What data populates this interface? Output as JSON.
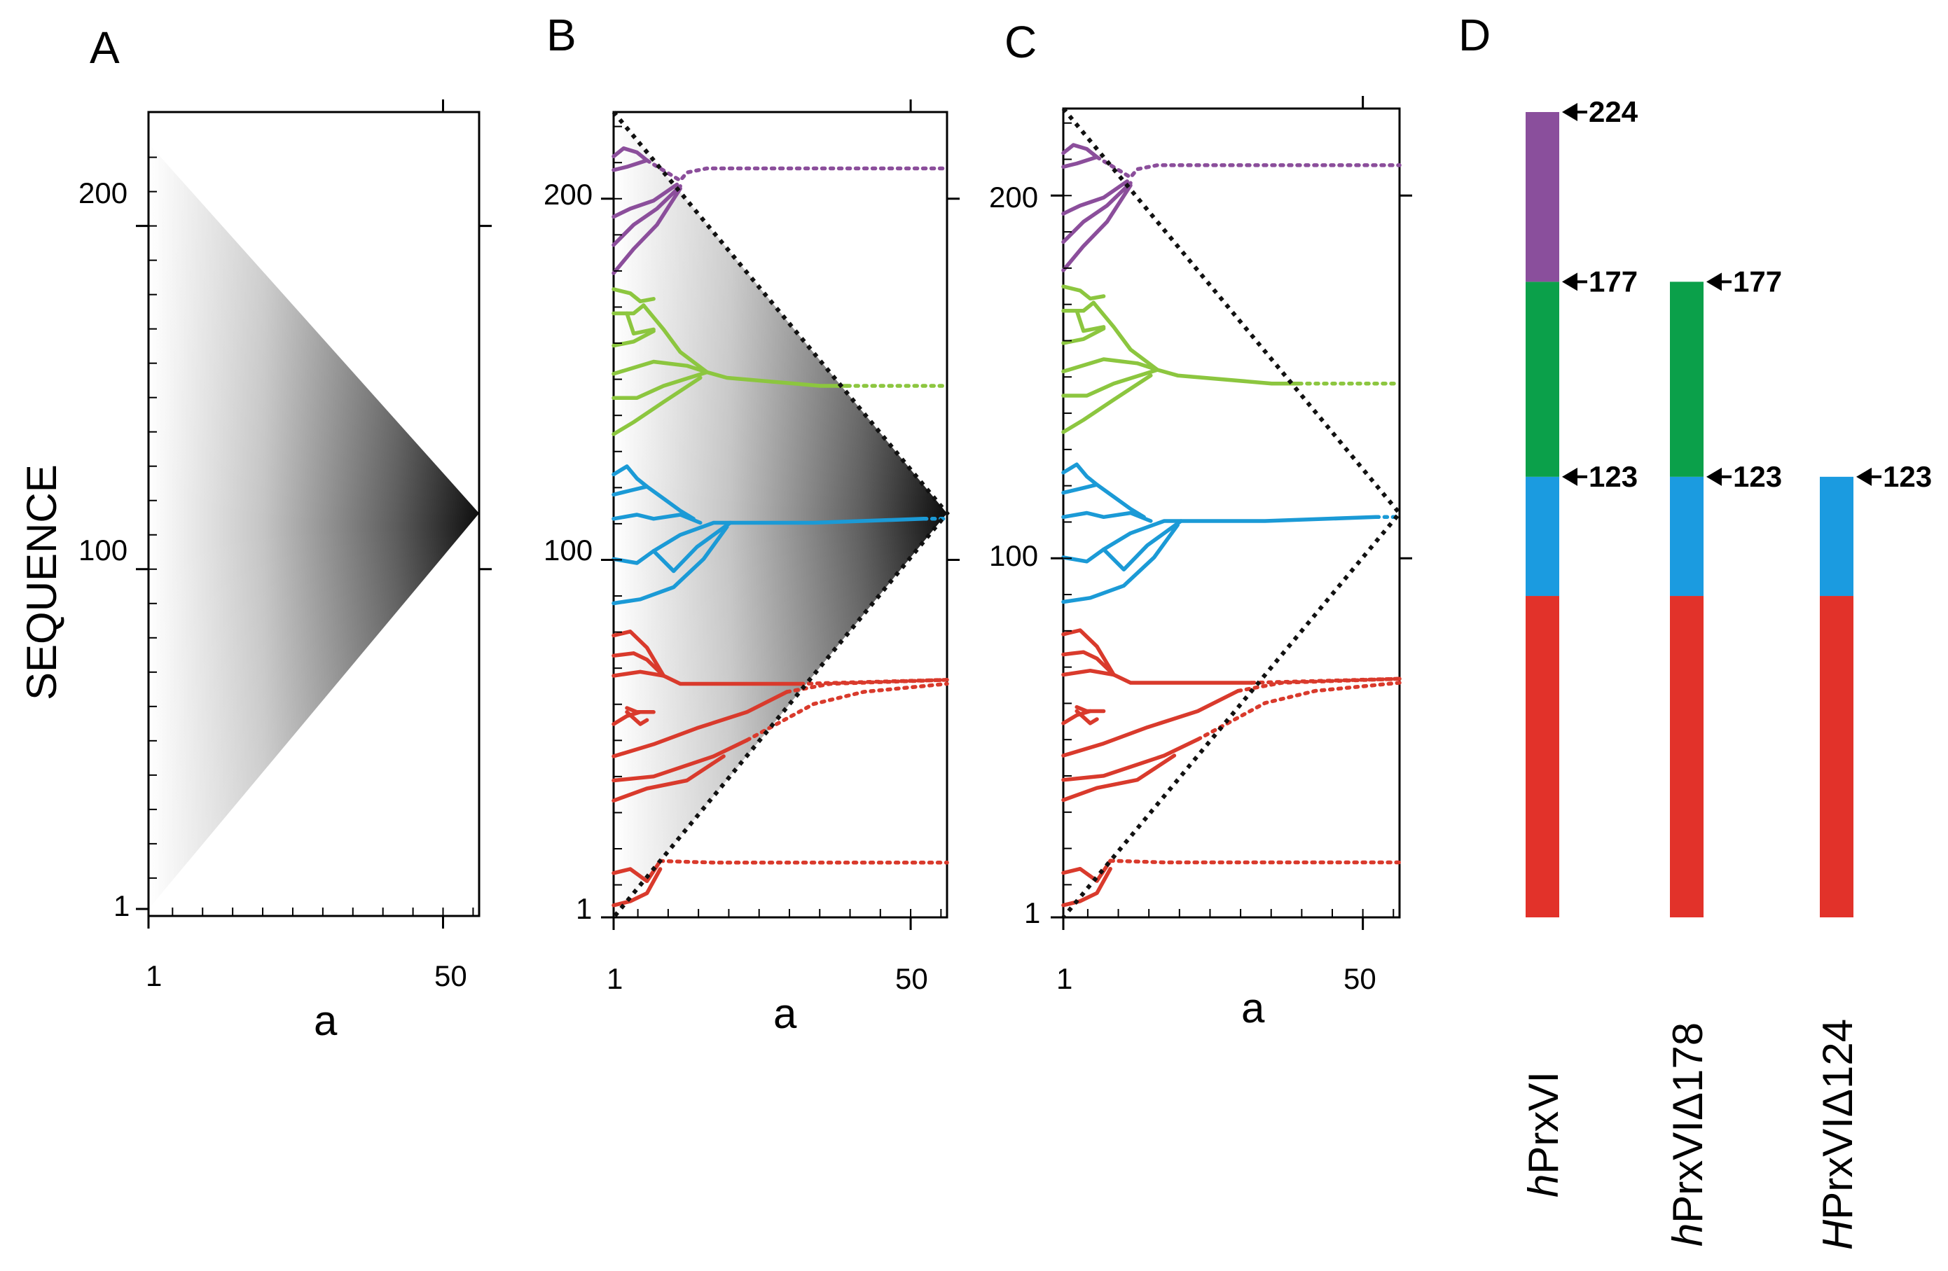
{
  "panels": [
    {
      "id": "A",
      "label": "A",
      "xlabel": "a",
      "y_ticks": [
        "1",
        "100",
        "200"
      ],
      "x_ticks": [
        "1",
        "50"
      ],
      "has_skeleton": false,
      "has_gray": true
    },
    {
      "id": "B",
      "label": "B",
      "xlabel": "a",
      "y_ticks": [
        "1",
        "100",
        "200"
      ],
      "x_ticks": [
        "1",
        "50"
      ],
      "has_skeleton": true,
      "has_gray": true
    },
    {
      "id": "C",
      "label": "C",
      "xlabel": "a",
      "y_ticks": [
        "1",
        "100",
        "200"
      ],
      "x_ticks": [
        "1",
        "50"
      ],
      "has_skeleton": true,
      "has_gray": false
    }
  ],
  "ylabel": "SEQUENCE",
  "axis": {
    "seq_min": 1,
    "seq_max": 224,
    "scale_min": 1,
    "scale_max": 56,
    "y_tick_values": [
      1,
      100,
      200
    ],
    "x_tick_values": [
      1,
      50
    ]
  },
  "domain_colors": {
    "purple": "#8b4e9b",
    "green": "#8cc63f",
    "blue": "#1b9ad6",
    "red": "#d93a2c"
  },
  "panel_d": {
    "label": "D",
    "segment_colors": {
      "purple": "#8a4f9c",
      "green": "#0ba04a",
      "blue": "#1b9be0",
      "red": "#e2322a"
    },
    "constructs": [
      {
        "name_italic": "h",
        "name_rest": "PrxVI",
        "segments": [
          [
            1,
            90,
            "red"
          ],
          [
            90,
            123,
            "blue"
          ],
          [
            123,
            177,
            "green"
          ],
          [
            177,
            224,
            "purple"
          ]
        ],
        "marks": [
          "123",
          "177",
          "224"
        ]
      },
      {
        "name_italic": "h",
        "name_rest": "PrxVIΔ178",
        "segments": [
          [
            1,
            90,
            "red"
          ],
          [
            90,
            123,
            "blue"
          ],
          [
            123,
            177,
            "green"
          ]
        ],
        "marks": [
          "123",
          "177"
        ]
      },
      {
        "name_italic": "H",
        "name_rest": "PrxVIΔ124",
        "segments": [
          [
            1,
            90,
            "red"
          ],
          [
            90,
            123,
            "blue"
          ]
        ],
        "marks": [
          "123"
        ]
      }
    ]
  }
}
